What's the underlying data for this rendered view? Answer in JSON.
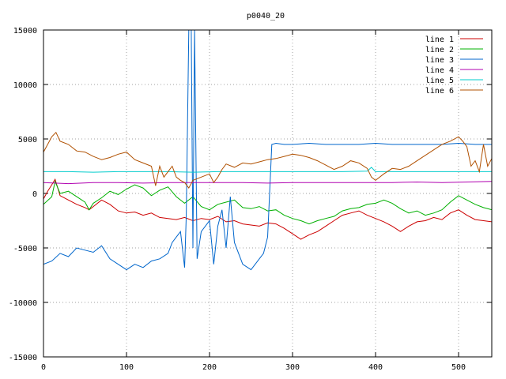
{
  "chart_data": {
    "type": "line",
    "title": "p0040_20",
    "xlabel": "",
    "ylabel": "",
    "xlim": [
      0,
      540
    ],
    "ylim": [
      -15000,
      15000
    ],
    "xticks": [
      0,
      100,
      200,
      300,
      400,
      500
    ],
    "yticks": [
      -15000,
      -10000,
      -5000,
      0,
      5000,
      10000,
      15000
    ],
    "grid": true,
    "legend_position": "top-right",
    "series": [
      {
        "name": "line 1",
        "color": "#cc0000",
        "points": [
          [
            0,
            -500
          ],
          [
            5,
            200
          ],
          [
            10,
            800
          ],
          [
            14,
            1300
          ],
          [
            20,
            -200
          ],
          [
            30,
            -600
          ],
          [
            40,
            -1000
          ],
          [
            50,
            -1300
          ],
          [
            55,
            -1500
          ],
          [
            60,
            -1200
          ],
          [
            70,
            -600
          ],
          [
            80,
            -1000
          ],
          [
            90,
            -1600
          ],
          [
            100,
            -1800
          ],
          [
            110,
            -1700
          ],
          [
            120,
            -2000
          ],
          [
            130,
            -1800
          ],
          [
            140,
            -2200
          ],
          [
            150,
            -2300
          ],
          [
            160,
            -2400
          ],
          [
            170,
            -2200
          ],
          [
            180,
            -2500
          ],
          [
            190,
            -2300
          ],
          [
            200,
            -2400
          ],
          [
            210,
            -2100
          ],
          [
            220,
            -2600
          ],
          [
            230,
            -2500
          ],
          [
            240,
            -2800
          ],
          [
            250,
            -2900
          ],
          [
            260,
            -3000
          ],
          [
            270,
            -2700
          ],
          [
            280,
            -2800
          ],
          [
            290,
            -3200
          ],
          [
            300,
            -3700
          ],
          [
            310,
            -4200
          ],
          [
            320,
            -3800
          ],
          [
            330,
            -3500
          ],
          [
            340,
            -3000
          ],
          [
            350,
            -2500
          ],
          [
            360,
            -2000
          ],
          [
            370,
            -1800
          ],
          [
            380,
            -1600
          ],
          [
            390,
            -2000
          ],
          [
            400,
            -2300
          ],
          [
            410,
            -2600
          ],
          [
            420,
            -3000
          ],
          [
            430,
            -3500
          ],
          [
            440,
            -3000
          ],
          [
            450,
            -2600
          ],
          [
            460,
            -2500
          ],
          [
            470,
            -2200
          ],
          [
            480,
            -2400
          ],
          [
            490,
            -1800
          ],
          [
            500,
            -1500
          ],
          [
            510,
            -2000
          ],
          [
            520,
            -2400
          ],
          [
            530,
            -2500
          ],
          [
            540,
            -2600
          ]
        ]
      },
      {
        "name": "line 2",
        "color": "#00b000",
        "points": [
          [
            0,
            -1000
          ],
          [
            10,
            -300
          ],
          [
            14,
            1100
          ],
          [
            20,
            0
          ],
          [
            30,
            200
          ],
          [
            40,
            -300
          ],
          [
            50,
            -800
          ],
          [
            55,
            -1500
          ],
          [
            60,
            -900
          ],
          [
            70,
            -400
          ],
          [
            80,
            200
          ],
          [
            90,
            -100
          ],
          [
            100,
            400
          ],
          [
            110,
            800
          ],
          [
            120,
            500
          ],
          [
            130,
            -200
          ],
          [
            140,
            300
          ],
          [
            150,
            600
          ],
          [
            160,
            -300
          ],
          [
            170,
            -900
          ],
          [
            180,
            -300
          ],
          [
            190,
            -1200
          ],
          [
            200,
            -1500
          ],
          [
            210,
            -1000
          ],
          [
            220,
            -800
          ],
          [
            230,
            -600
          ],
          [
            240,
            -1300
          ],
          [
            250,
            -1400
          ],
          [
            260,
            -1200
          ],
          [
            270,
            -1600
          ],
          [
            280,
            -1500
          ],
          [
            290,
            -2000
          ],
          [
            300,
            -2300
          ],
          [
            310,
            -2500
          ],
          [
            320,
            -2800
          ],
          [
            330,
            -2500
          ],
          [
            340,
            -2300
          ],
          [
            350,
            -2100
          ],
          [
            360,
            -1600
          ],
          [
            370,
            -1400
          ],
          [
            380,
            -1300
          ],
          [
            390,
            -1000
          ],
          [
            400,
            -900
          ],
          [
            410,
            -600
          ],
          [
            420,
            -900
          ],
          [
            430,
            -1400
          ],
          [
            440,
            -1800
          ],
          [
            450,
            -1600
          ],
          [
            460,
            -2000
          ],
          [
            470,
            -1800
          ],
          [
            480,
            -1500
          ],
          [
            490,
            -800
          ],
          [
            500,
            -200
          ],
          [
            510,
            -600
          ],
          [
            520,
            -1000
          ],
          [
            530,
            -1300
          ],
          [
            540,
            -1500
          ]
        ]
      },
      {
        "name": "line 3",
        "color": "#0066cc",
        "points": [
          [
            0,
            -6500
          ],
          [
            10,
            -6200
          ],
          [
            20,
            -5500
          ],
          [
            30,
            -5800
          ],
          [
            40,
            -5000
          ],
          [
            50,
            -5200
          ],
          [
            60,
            -5400
          ],
          [
            70,
            -4800
          ],
          [
            80,
            -6000
          ],
          [
            90,
            -6500
          ],
          [
            100,
            -7000
          ],
          [
            110,
            -6500
          ],
          [
            120,
            -6800
          ],
          [
            130,
            -6200
          ],
          [
            140,
            -6000
          ],
          [
            150,
            -5500
          ],
          [
            155,
            -4500
          ],
          [
            160,
            -4000
          ],
          [
            165,
            -3500
          ],
          [
            170,
            -6800
          ],
          [
            172,
            -2000
          ],
          [
            175,
            15000
          ],
          [
            178,
            15000
          ],
          [
            180,
            -5000
          ],
          [
            182,
            15000
          ],
          [
            185,
            -6000
          ],
          [
            190,
            -3500
          ],
          [
            200,
            -2500
          ],
          [
            205,
            -6500
          ],
          [
            210,
            -3000
          ],
          [
            215,
            -1500
          ],
          [
            220,
            -5000
          ],
          [
            225,
            -300
          ],
          [
            230,
            -4500
          ],
          [
            240,
            -6500
          ],
          [
            250,
            -7000
          ],
          [
            260,
            -6000
          ],
          [
            265,
            -5500
          ],
          [
            270,
            -4000
          ],
          [
            275,
            4500
          ],
          [
            280,
            4600
          ],
          [
            290,
            4500
          ],
          [
            300,
            4500
          ],
          [
            320,
            4600
          ],
          [
            340,
            4500
          ],
          [
            360,
            4500
          ],
          [
            380,
            4500
          ],
          [
            400,
            4600
          ],
          [
            420,
            4500
          ],
          [
            440,
            4500
          ],
          [
            460,
            4500
          ],
          [
            480,
            4500
          ],
          [
            500,
            4600
          ],
          [
            520,
            4500
          ],
          [
            540,
            4500
          ]
        ]
      },
      {
        "name": "line 4",
        "color": "#b000b0",
        "points": [
          [
            0,
            1000
          ],
          [
            30,
            900
          ],
          [
            60,
            1000
          ],
          [
            90,
            1000
          ],
          [
            120,
            950
          ],
          [
            150,
            1000
          ],
          [
            180,
            1000
          ],
          [
            210,
            1000
          ],
          [
            240,
            1000
          ],
          [
            270,
            950
          ],
          [
            300,
            1000
          ],
          [
            330,
            1000
          ],
          [
            360,
            1000
          ],
          [
            390,
            1000
          ],
          [
            420,
            1000
          ],
          [
            450,
            1050
          ],
          [
            480,
            1000
          ],
          [
            510,
            1050
          ],
          [
            540,
            1100
          ]
        ]
      },
      {
        "name": "line 5",
        "color": "#00cccc",
        "points": [
          [
            0,
            2000
          ],
          [
            30,
            2000
          ],
          [
            60,
            1950
          ],
          [
            90,
            2000
          ],
          [
            120,
            2000
          ],
          [
            150,
            2000
          ],
          [
            180,
            1950
          ],
          [
            210,
            2000
          ],
          [
            240,
            2000
          ],
          [
            270,
            2000
          ],
          [
            300,
            2000
          ],
          [
            330,
            2000
          ],
          [
            360,
            2000
          ],
          [
            390,
            2050
          ],
          [
            395,
            2400
          ],
          [
            400,
            2000
          ],
          [
            420,
            2000
          ],
          [
            450,
            2000
          ],
          [
            480,
            2000
          ],
          [
            510,
            2000
          ],
          [
            540,
            2000
          ]
        ]
      },
      {
        "name": "line 6",
        "color": "#b05000",
        "points": [
          [
            0,
            3800
          ],
          [
            5,
            4500
          ],
          [
            10,
            5200
          ],
          [
            15,
            5600
          ],
          [
            20,
            4800
          ],
          [
            30,
            4500
          ],
          [
            40,
            3900
          ],
          [
            50,
            3800
          ],
          [
            60,
            3400
          ],
          [
            70,
            3100
          ],
          [
            80,
            3300
          ],
          [
            90,
            3600
          ],
          [
            100,
            3800
          ],
          [
            110,
            3100
          ],
          [
            120,
            2800
          ],
          [
            130,
            2500
          ],
          [
            135,
            700
          ],
          [
            140,
            2500
          ],
          [
            145,
            1500
          ],
          [
            150,
            2000
          ],
          [
            155,
            2500
          ],
          [
            160,
            1500
          ],
          [
            165,
            1200
          ],
          [
            170,
            1000
          ],
          [
            175,
            500
          ],
          [
            180,
            1200
          ],
          [
            190,
            1500
          ],
          [
            200,
            1800
          ],
          [
            205,
            1000
          ],
          [
            210,
            1500
          ],
          [
            215,
            2200
          ],
          [
            220,
            2700
          ],
          [
            230,
            2400
          ],
          [
            240,
            2800
          ],
          [
            250,
            2700
          ],
          [
            260,
            2900
          ],
          [
            270,
            3100
          ],
          [
            280,
            3200
          ],
          [
            290,
            3400
          ],
          [
            300,
            3600
          ],
          [
            310,
            3500
          ],
          [
            320,
            3300
          ],
          [
            330,
            3000
          ],
          [
            340,
            2600
          ],
          [
            350,
            2200
          ],
          [
            360,
            2500
          ],
          [
            370,
            3000
          ],
          [
            380,
            2800
          ],
          [
            390,
            2300
          ],
          [
            395,
            1500
          ],
          [
            400,
            1200
          ],
          [
            410,
            1800
          ],
          [
            420,
            2300
          ],
          [
            430,
            2200
          ],
          [
            440,
            2500
          ],
          [
            450,
            3000
          ],
          [
            460,
            3500
          ],
          [
            470,
            4000
          ],
          [
            480,
            4500
          ],
          [
            490,
            4800
          ],
          [
            500,
            5200
          ],
          [
            505,
            4800
          ],
          [
            510,
            4300
          ],
          [
            515,
            2500
          ],
          [
            520,
            3000
          ],
          [
            525,
            2000
          ],
          [
            530,
            4500
          ],
          [
            535,
            2500
          ],
          [
            540,
            3200
          ]
        ]
      }
    ]
  }
}
